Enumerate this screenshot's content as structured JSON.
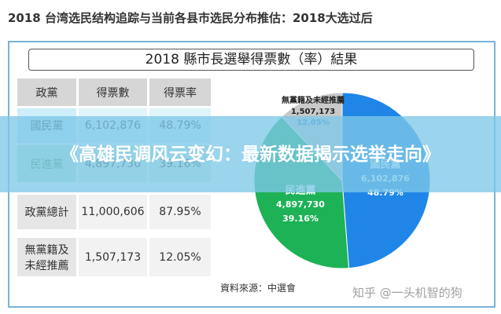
{
  "header": {
    "title": "2018 台湾选民结构追踪与当前各县市选民分布推估：2018大选过后"
  },
  "figure": {
    "title": "2018 縣市長選舉得票數（率）結果",
    "source": "資料來源：中選會"
  },
  "table": {
    "columns": [
      "政黨",
      "得票數",
      "得票率"
    ],
    "rows": [
      [
        "國民黨",
        "6,102,876",
        "48.79%"
      ],
      [
        "民進黨",
        "4,897,730",
        "39.16%"
      ],
      [
        "政黨總計",
        "11,000,606",
        "87.95%"
      ],
      [
        "無黨籍及未經推薦",
        "1,507,173",
        "12.05%"
      ]
    ]
  },
  "chart_data": {
    "type": "pie",
    "categories": [
      "國民黨",
      "民進黨",
      "無黨籍及未經推薦"
    ],
    "values": [
      48.79,
      39.16,
      12.05
    ],
    "value_labels": [
      "48.79%",
      "39.16%",
      "12.05%"
    ],
    "vote_labels": [
      "6,102,876",
      "4,897,730",
      "1,507,173"
    ],
    "colors": [
      "#1f86e8",
      "#1db256",
      "#c9c9c9"
    ]
  },
  "banner": {
    "title": "《高雄民调风云变幻：最新数据揭示选举走向》"
  },
  "watermark": "知乎 @一头机智的狗"
}
